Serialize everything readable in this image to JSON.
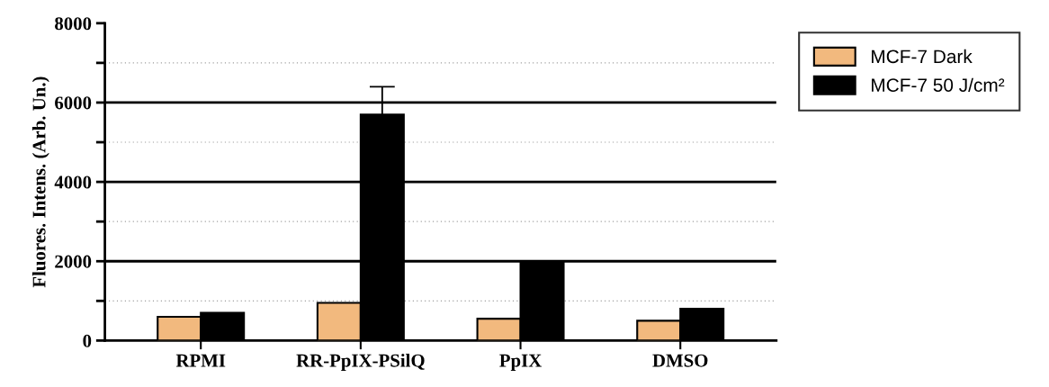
{
  "chart_data": {
    "type": "bar",
    "ylabel": "Fluores. Intens. (Arb. Un.)",
    "categories": [
      "RPMI",
      "RR-PpIX-PSilQ",
      "PpIX",
      "DMSO"
    ],
    "series": [
      {
        "name": "MCF-7 Dark",
        "color": "#f2b97e",
        "values": [
          600,
          950,
          550,
          500
        ]
      },
      {
        "name": "MCF-7 50 J/cm²",
        "color": "#000000",
        "values": [
          700,
          5700,
          2000,
          800
        ],
        "errors": [
          null,
          700,
          null,
          null
        ]
      }
    ],
    "ylim": [
      0,
      8000
    ],
    "yticks": [
      0,
      {
        "value": 1000,
        "label": null
      },
      2000,
      {
        "value": 3000,
        "label": null
      },
      4000,
      {
        "value": 5000,
        "label": null
      },
      6000,
      {
        "value": 7000,
        "label": null
      },
      8000
    ],
    "grid": "y",
    "legend": "top right"
  }
}
